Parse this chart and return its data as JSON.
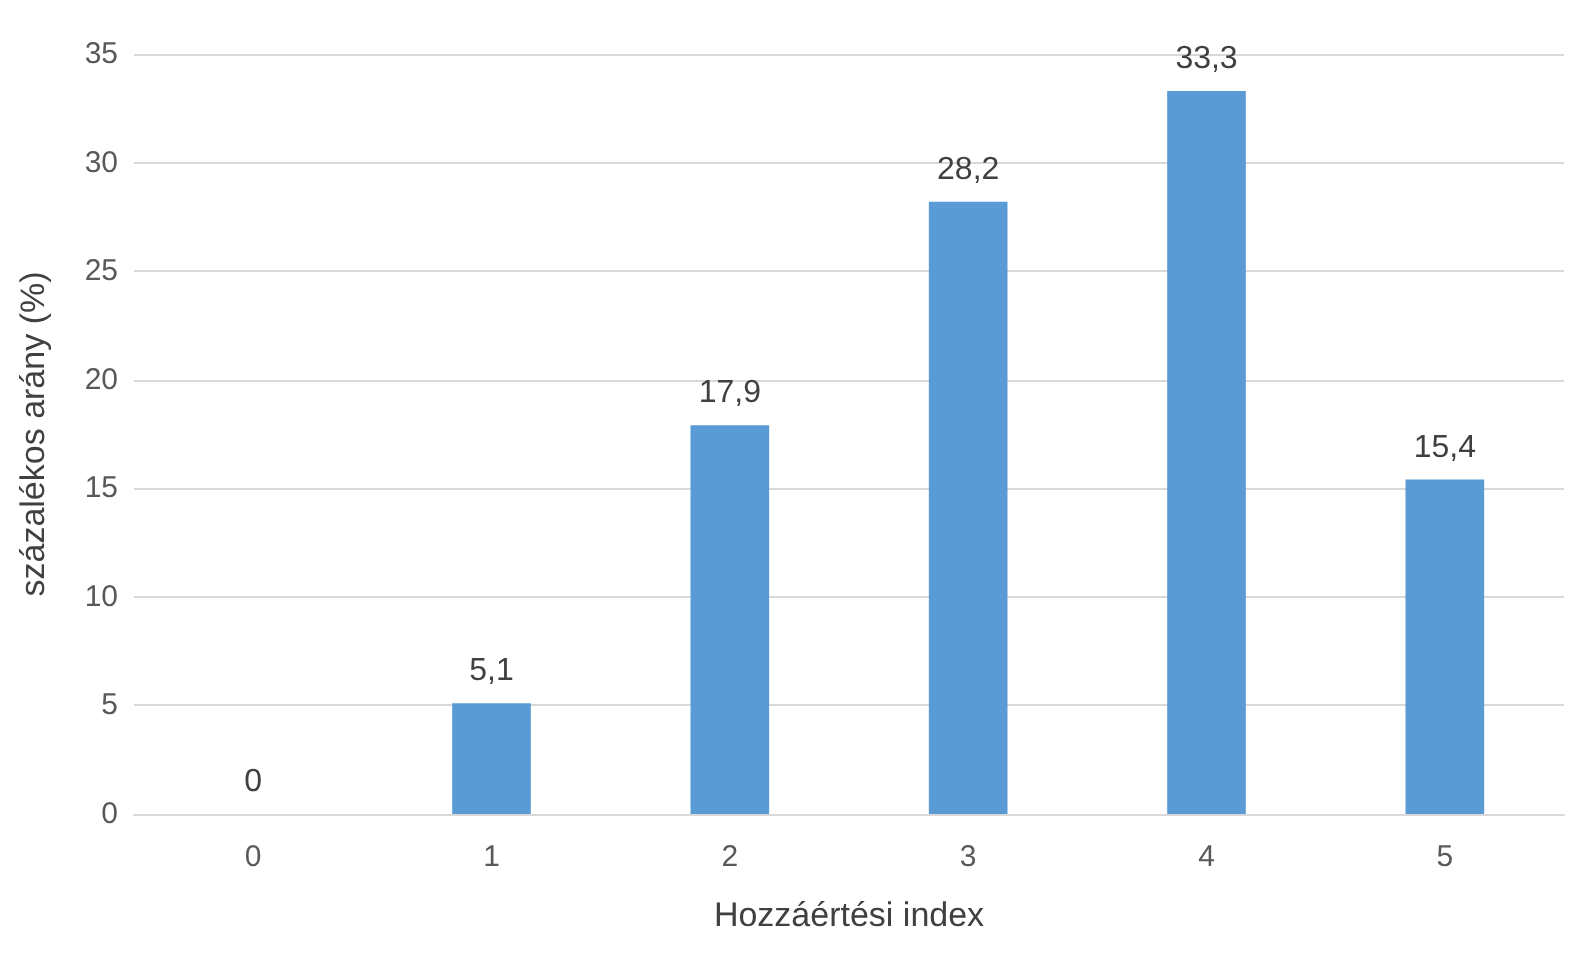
{
  "chart_data": {
    "type": "bar",
    "xlabel": "Hozzáértési index",
    "ylabel": "százalékos arány (%)",
    "categories": [
      "0",
      "1",
      "2",
      "3",
      "4",
      "5"
    ],
    "values": [
      0,
      5.1,
      17.9,
      28.2,
      33.3,
      15.4
    ],
    "color": "#5b9bd5",
    "value_labels": [
      "0",
      "5,1",
      "17,9",
      "28,2",
      "33,3",
      "15,4"
    ],
    "ylim": [
      0,
      35
    ],
    "yticks": [
      0,
      5,
      10,
      15,
      20,
      25,
      30,
      35
    ],
    "grid": "y"
  }
}
